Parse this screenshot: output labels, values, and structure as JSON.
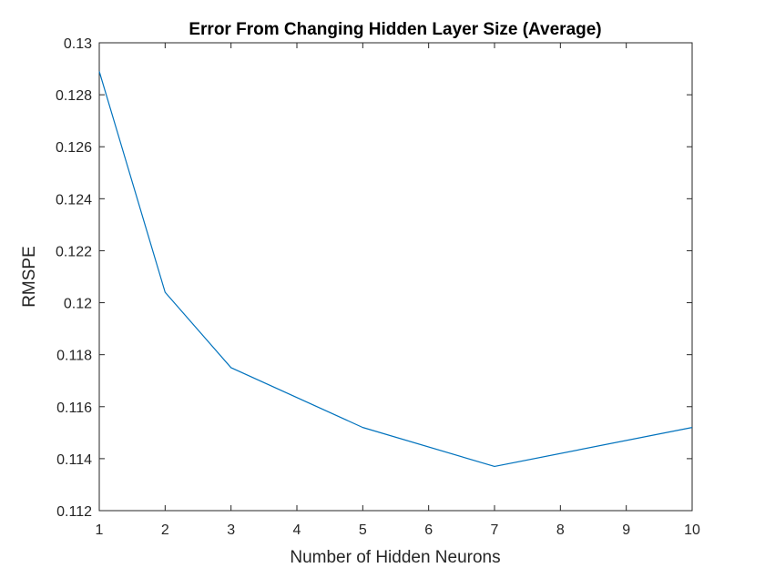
{
  "chart_data": {
    "type": "line",
    "title": "Error From Changing Hidden Layer Size (Average)",
    "xlabel": "Number of Hidden Neurons",
    "ylabel": "RMSPE",
    "xlim": [
      1,
      10
    ],
    "ylim": [
      0.112,
      0.13
    ],
    "xticks": [
      "1",
      "2",
      "3",
      "4",
      "5",
      "6",
      "7",
      "8",
      "9",
      "10"
    ],
    "yticks": [
      "0.112",
      "0.114",
      "0.116",
      "0.118",
      "0.12",
      "0.122",
      "0.124",
      "0.126",
      "0.128",
      "0.13"
    ],
    "grid": false,
    "series": [
      {
        "x": [
          1,
          2,
          3,
          5,
          7,
          10
        ],
        "y": [
          0.1289,
          0.1204,
          0.1175,
          0.1152,
          0.1137,
          0.1152
        ],
        "color": "#0072BD"
      }
    ]
  }
}
